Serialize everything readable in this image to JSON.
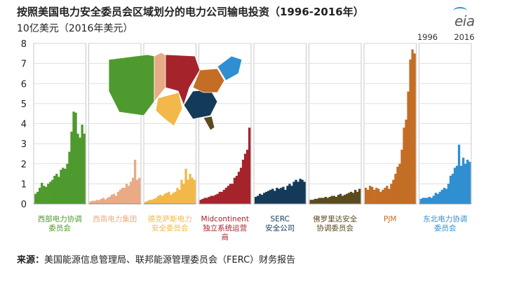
{
  "title": "按照美国电力安全委员会区域划分的电力公司输电投资（1996-2016年）",
  "subtitle": "10亿美元（2016年美元）",
  "source_label": "来源：",
  "source_text": "美国能源信息管理局、联邦能源管理委员会（FERC）财务报告",
  "logo": "eia",
  "chart_data": {
    "type": "bar",
    "ylim": [
      0,
      8
    ],
    "yticks": [
      0,
      1,
      2,
      3,
      4,
      5,
      6,
      7,
      8
    ],
    "grid": true,
    "panel_year_labels": [
      "1996",
      "2016"
    ],
    "panels": [
      {
        "label": "西部电力协调委员会",
        "color": "#4f9a2e",
        "values": [
          0.5,
          0.6,
          0.8,
          1.05,
          0.9,
          0.85,
          1.0,
          1.1,
          1.2,
          1.4,
          1.5,
          1.35,
          1.7,
          1.8,
          1.75,
          2.0,
          2.6,
          3.6,
          4.6,
          4.55,
          3.5,
          3.3,
          3.95,
          3.5
        ]
      },
      {
        "label": "西南电力集团",
        "color": "#e8ab86",
        "values": [
          0.12,
          0.15,
          0.15,
          0.2,
          0.18,
          0.25,
          0.3,
          0.22,
          0.3,
          0.35,
          0.45,
          0.5,
          0.4,
          0.6,
          0.7,
          0.8,
          0.8,
          1.0,
          0.9,
          1.1,
          1.3,
          2.2,
          1.2,
          1.3
        ]
      },
      {
        "label": "德克萨斯电力安全委员会",
        "color": "#f2b84a",
        "values": [
          0.1,
          0.15,
          0.2,
          0.2,
          0.25,
          0.3,
          0.4,
          0.45,
          0.4,
          0.5,
          0.55,
          0.6,
          0.45,
          0.55,
          0.6,
          0.8,
          0.7,
          1.2,
          1.0,
          1.75,
          1.2,
          1.5,
          1.3,
          1.2
        ]
      },
      {
        "label": "Midcontinent独立系统运营商",
        "color": "#a5242b",
        "values": [
          0.2,
          0.25,
          0.3,
          0.3,
          0.35,
          0.4,
          0.4,
          0.45,
          0.5,
          0.6,
          0.6,
          0.7,
          0.8,
          0.9,
          1.0,
          1.0,
          1.3,
          1.4,
          1.6,
          1.8,
          2.2,
          2.5,
          2.7,
          3.8
        ]
      },
      {
        "label": "SERC安全公司",
        "color": "#143a5a",
        "values": [
          0.35,
          0.4,
          0.5,
          0.45,
          0.55,
          0.6,
          0.65,
          0.7,
          0.75,
          0.65,
          0.8,
          0.75,
          0.8,
          0.85,
          0.7,
          0.9,
          1.0,
          0.9,
          1.1,
          1.2,
          1.1,
          1.25,
          1.2,
          1.1
        ]
      },
      {
        "label": "佛罗里达安全协调委员会",
        "color": "#5b4a1e",
        "values": [
          0.2,
          0.2,
          0.25,
          0.25,
          0.3,
          0.3,
          0.3,
          0.35,
          0.3,
          0.35,
          0.4,
          0.4,
          0.35,
          0.45,
          0.5,
          0.4,
          0.45,
          0.5,
          0.55,
          0.6,
          0.55,
          0.7,
          0.6,
          0.75
        ]
      },
      {
        "label": "PJM",
        "color": "#c46d25",
        "values": [
          0.8,
          0.7,
          0.9,
          0.85,
          0.7,
          0.8,
          0.75,
          0.6,
          0.7,
          0.8,
          0.9,
          0.75,
          1.0,
          1.2,
          1.5,
          1.85,
          2.0,
          2.7,
          3.8,
          4.2,
          5.6,
          7.2,
          7.7,
          7.5
        ]
      },
      {
        "label": "东北电力协调委员会",
        "color": "#2f8fd1",
        "values": [
          0.25,
          0.3,
          0.3,
          0.3,
          0.35,
          0.3,
          0.4,
          0.55,
          0.5,
          0.6,
          0.7,
          0.8,
          0.75,
          1.0,
          1.4,
          1.5,
          1.8,
          1.9,
          2.95,
          1.9,
          2.3,
          2.0,
          2.2,
          2.1
        ]
      }
    ]
  }
}
